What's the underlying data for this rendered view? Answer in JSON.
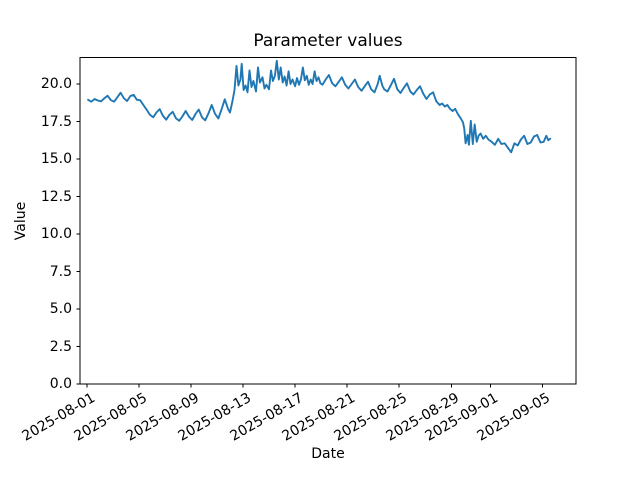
{
  "chart_data": {
    "type": "line",
    "title": "Parameter values",
    "xlabel": "Date",
    "ylabel": "Value",
    "legend": "none",
    "grid": false,
    "background": "#ffffff",
    "line_color": "#1f77b4",
    "spine_color": "#000000",
    "ylim": [
      0,
      21.76
    ],
    "xlim_days": [
      -0.52,
      37.58
    ],
    "x_ticks": [
      {
        "day": 0,
        "label": "2025-08-01"
      },
      {
        "day": 4,
        "label": "2025-08-05"
      },
      {
        "day": 8,
        "label": "2025-08-09"
      },
      {
        "day": 12,
        "label": "2025-08-13"
      },
      {
        "day": 16,
        "label": "2025-08-17"
      },
      {
        "day": 20,
        "label": "2025-08-21"
      },
      {
        "day": 24,
        "label": "2025-08-25"
      },
      {
        "day": 28,
        "label": "2025-08-29"
      },
      {
        "day": 31,
        "label": "2025-09-01"
      },
      {
        "day": 35,
        "label": "2025-09-05"
      }
    ],
    "y_ticks": [
      {
        "value": 0,
        "label": "0.0"
      },
      {
        "value": 2.5,
        "label": "2.5"
      },
      {
        "value": 5,
        "label": "5.0"
      },
      {
        "value": 7.5,
        "label": "7.5"
      },
      {
        "value": 10,
        "label": "10.0"
      },
      {
        "value": 12.5,
        "label": "12.5"
      },
      {
        "value": 15,
        "label": "15.0"
      },
      {
        "value": 17.5,
        "label": "17.5"
      },
      {
        "value": 20,
        "label": "20.0"
      }
    ],
    "series": [
      {
        "name": "parameter-values",
        "x_days": [
          0.1,
          0.35,
          0.6,
          0.85,
          1.1,
          1.35,
          1.6,
          1.85,
          2.1,
          2.35,
          2.6,
          2.85,
          3.1,
          3.35,
          3.6,
          3.85,
          4.1,
          4.35,
          4.6,
          4.85,
          5.1,
          5.35,
          5.6,
          5.85,
          6.1,
          6.35,
          6.6,
          6.85,
          7.1,
          7.35,
          7.6,
          7.85,
          8.1,
          8.35,
          8.6,
          8.85,
          9.1,
          9.35,
          9.6,
          9.85,
          10.1,
          10.35,
          10.6,
          10.85,
          11.0,
          11.2,
          11.35,
          11.5,
          11.65,
          11.8,
          11.9,
          12.05,
          12.2,
          12.35,
          12.5,
          12.65,
          12.8,
          13.0,
          13.15,
          13.3,
          13.5,
          13.65,
          13.8,
          14.0,
          14.15,
          14.3,
          14.45,
          14.6,
          14.75,
          14.9,
          15.05,
          15.2,
          15.35,
          15.5,
          15.65,
          15.8,
          16.0,
          16.15,
          16.3,
          16.45,
          16.6,
          16.75,
          16.9,
          17.05,
          17.2,
          17.35,
          17.5,
          17.65,
          17.8,
          17.95,
          18.1,
          18.35,
          18.6,
          18.85,
          19.1,
          19.35,
          19.6,
          19.85,
          20.1,
          20.35,
          20.6,
          20.85,
          21.1,
          21.35,
          21.6,
          21.85,
          22.1,
          22.35,
          22.5,
          22.7,
          22.85,
          23.1,
          23.35,
          23.6,
          23.85,
          24.1,
          24.35,
          24.6,
          24.85,
          25.1,
          25.35,
          25.6,
          25.85,
          26.1,
          26.35,
          26.6,
          26.85,
          27.1,
          27.3,
          27.5,
          27.7,
          27.9,
          28.1,
          28.3,
          28.5,
          28.7,
          28.9,
          29.0,
          29.1,
          29.25,
          29.35,
          29.5,
          29.65,
          29.8,
          29.95,
          30.1,
          30.25,
          30.45,
          30.65,
          30.85,
          31.1,
          31.35,
          31.6,
          31.85,
          32.1,
          32.35,
          32.6,
          32.85,
          33.1,
          33.35,
          33.6,
          33.85,
          34.1,
          34.35,
          34.6,
          34.85,
          35.1,
          35.3,
          35.45,
          35.6
        ],
        "y": [
          18.95,
          18.82,
          19.0,
          18.9,
          18.85,
          19.05,
          19.22,
          18.92,
          18.82,
          19.12,
          19.42,
          19.05,
          18.87,
          19.2,
          19.28,
          18.95,
          18.92,
          18.6,
          18.28,
          17.95,
          17.78,
          18.1,
          18.33,
          17.88,
          17.62,
          17.95,
          18.15,
          17.72,
          17.55,
          17.85,
          18.2,
          17.82,
          17.6,
          18.0,
          18.3,
          17.78,
          17.58,
          18.05,
          18.6,
          18.02,
          17.7,
          18.3,
          18.98,
          18.35,
          18.1,
          18.9,
          19.6,
          21.2,
          19.9,
          20.3,
          21.35,
          19.6,
          19.9,
          19.45,
          20.9,
          19.8,
          20.2,
          19.5,
          21.1,
          20.1,
          20.45,
          19.7,
          19.95,
          19.65,
          20.9,
          20.2,
          20.55,
          21.55,
          20.3,
          21.1,
          20.1,
          20.5,
          19.9,
          20.85,
          20.0,
          20.3,
          19.85,
          20.4,
          19.95,
          20.3,
          21.1,
          20.25,
          20.55,
          19.95,
          20.3,
          20.0,
          20.85,
          20.2,
          20.45,
          20.05,
          19.95,
          20.3,
          20.6,
          20.05,
          19.85,
          20.15,
          20.45,
          19.95,
          19.7,
          20.0,
          20.3,
          19.8,
          19.55,
          19.85,
          20.15,
          19.65,
          19.45,
          20.0,
          20.55,
          19.9,
          19.65,
          19.5,
          19.9,
          20.35,
          19.65,
          19.4,
          19.75,
          20.05,
          19.5,
          19.3,
          19.6,
          19.85,
          19.35,
          19.0,
          19.3,
          19.45,
          18.85,
          18.6,
          18.7,
          18.5,
          18.6,
          18.35,
          18.2,
          18.35,
          18.0,
          17.75,
          17.45,
          17.0,
          16.05,
          16.6,
          15.95,
          17.55,
          16.0,
          17.3,
          16.15,
          16.55,
          16.7,
          16.35,
          16.55,
          16.3,
          16.15,
          15.95,
          16.35,
          16.0,
          16.05,
          15.75,
          15.45,
          16.05,
          15.9,
          16.3,
          16.55,
          16.0,
          16.1,
          16.5,
          16.6,
          16.1,
          16.15,
          16.55,
          16.25,
          16.35
        ]
      }
    ]
  }
}
